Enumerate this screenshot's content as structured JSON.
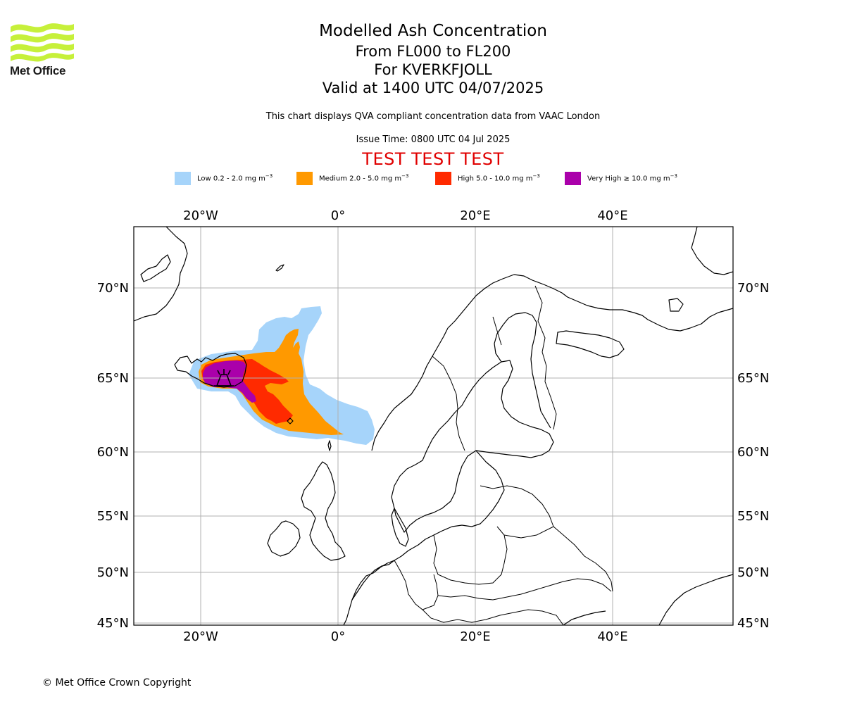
{
  "logo": {
    "wordmark": "Met Office",
    "color": "#c6f03a"
  },
  "header": {
    "title": "Modelled Ash Concentration",
    "levels": "From FL000 to FL200",
    "volcano": "For KVERKFJOLL",
    "valid": "Valid at 1400 UTC 04/07/2025",
    "description": "This chart displays QVA compliant concentration data from VAAC London",
    "issue_time": "Issue Time: 0800 UTC 04 Jul 2025",
    "banner": "TEST TEST TEST",
    "banner_color": "#e00000"
  },
  "legend": [
    {
      "label": "Low 0.2 - 2.0 mg m",
      "unit_exp": "−3",
      "color": "#a6d4fa"
    },
    {
      "label": "Medium 2.0 - 5.0 mg m",
      "unit_exp": "−3",
      "color": "#ff9900"
    },
    {
      "label": "High 5.0 - 10.0 mg m",
      "unit_exp": "−3",
      "color": "#ff2a00"
    },
    {
      "label": "Very High  ≥  10.0 mg m",
      "unit_exp": "−3",
      "color": "#aa00aa"
    }
  ],
  "map": {
    "top_longitude_labels": [
      "20°W",
      "0°",
      "20°E",
      "40°E"
    ],
    "bottom_longitude_labels": [
      "20°W",
      "0°",
      "20°E",
      "40°E"
    ],
    "left_latitude_labels": [
      "70°N",
      "65°N",
      "60°N",
      "55°N",
      "50°N",
      "45°N"
    ],
    "right_latitude_labels": [
      "70°N",
      "65°N",
      "60°N",
      "55°N",
      "50°N",
      "45°N"
    ],
    "volcano_marker": "volcano-icon"
  },
  "footer": {
    "copyright": "© Met Office Crown Copyright"
  }
}
